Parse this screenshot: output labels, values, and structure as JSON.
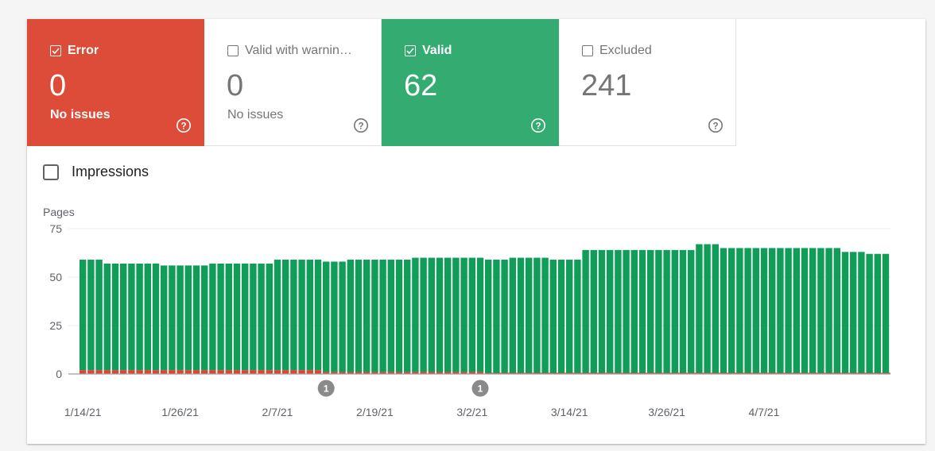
{
  "tiles": [
    {
      "label": "Error",
      "value": "0",
      "sub": "No issues",
      "selected": true,
      "color": "#dd4b39"
    },
    {
      "label": "Valid with warnin…",
      "value": "0",
      "sub": "No issues",
      "selected": false,
      "color": "#ffffff"
    },
    {
      "label": "Valid",
      "value": "62",
      "sub": "",
      "selected": true,
      "color": "#33ab71"
    },
    {
      "label": "Excluded",
      "value": "241",
      "sub": "",
      "selected": false,
      "color": "#ffffff"
    }
  ],
  "impressions": {
    "label": "Impressions",
    "checked": false
  },
  "chart_data": {
    "type": "bar",
    "stacked": true,
    "ylabel": "Pages",
    "ylim": [
      0,
      75
    ],
    "yticks": [
      0,
      25,
      50,
      75
    ],
    "xtick_labels": [
      "1/14/21",
      "1/26/21",
      "2/7/21",
      "2/19/21",
      "3/2/21",
      "3/14/21",
      "3/26/21",
      "4/7/21"
    ],
    "grid": true,
    "colors": {
      "valid": "#0f9d58",
      "error": "#db4437"
    },
    "series": [
      {
        "name": "Error",
        "values": [
          2,
          2,
          2,
          2,
          2,
          2,
          2,
          2,
          2,
          2,
          2,
          2,
          2,
          2,
          2,
          2,
          2,
          2,
          2,
          2,
          2,
          2,
          2,
          2,
          2,
          2,
          2,
          2,
          2,
          2,
          1,
          1,
          1,
          1,
          1,
          1,
          1,
          1,
          1,
          1,
          1,
          1,
          1,
          1,
          1,
          1,
          1,
          1,
          1,
          1,
          0,
          0,
          0,
          0,
          0,
          0,
          0,
          0,
          0,
          0,
          0,
          0,
          0,
          0,
          0,
          0,
          0,
          0,
          0,
          0,
          0,
          0,
          0,
          0,
          0,
          0,
          0,
          0,
          0,
          0,
          0,
          0,
          0,
          0,
          0,
          0,
          0,
          0,
          0,
          0,
          0,
          0,
          0,
          0,
          0,
          0,
          0,
          0,
          0,
          0
        ]
      },
      {
        "name": "Valid",
        "values": [
          57,
          57,
          57,
          55,
          55,
          55,
          55,
          55,
          55,
          55,
          54,
          54,
          54,
          54,
          54,
          54,
          55,
          55,
          55,
          55,
          55,
          55,
          55,
          55,
          57,
          57,
          57,
          57,
          57,
          57,
          57,
          57,
          57,
          58,
          58,
          58,
          58,
          58,
          58,
          58,
          58,
          59,
          59,
          59,
          59,
          59,
          59,
          59,
          59,
          59,
          59,
          59,
          59,
          60,
          60,
          60,
          60,
          60,
          59,
          59,
          59,
          59,
          64,
          64,
          64,
          64,
          64,
          64,
          64,
          64,
          64,
          64,
          64,
          64,
          64,
          64,
          67,
          67,
          67,
          65,
          65,
          65,
          65,
          65,
          65,
          65,
          65,
          65,
          65,
          65,
          65,
          65,
          65,
          65,
          63,
          63,
          63,
          62,
          62,
          62
        ]
      }
    ],
    "annotations": [
      {
        "label": "1",
        "x_index": 30
      },
      {
        "label": "1",
        "x_index": 49
      }
    ]
  }
}
